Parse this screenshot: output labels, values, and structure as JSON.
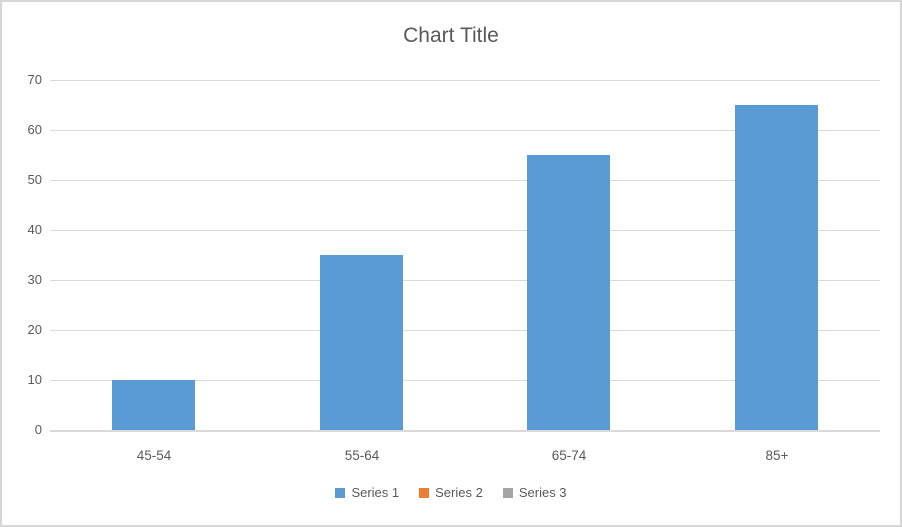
{
  "chart_data": {
    "type": "bar",
    "title": "Chart Title",
    "categories": [
      "45-54",
      "55-64",
      "65-74",
      "85+"
    ],
    "series": [
      {
        "name": "Series 1",
        "color": "#5B9BD5",
        "values": [
          10,
          35,
          55,
          65
        ]
      },
      {
        "name": "Series 2",
        "color": "#ED7D31",
        "values": []
      },
      {
        "name": "Series 3",
        "color": "#A5A5A5",
        "values": []
      }
    ],
    "xlabel": "",
    "ylabel": "",
    "ylim": [
      0,
      70
    ],
    "yticks": [
      0,
      10,
      20,
      30,
      40,
      50,
      60,
      70
    ],
    "grid": true,
    "legend_position": "bottom",
    "colors": {
      "text": "#595959",
      "gridline": "#D9D9D9",
      "frame_border": "#D7D7D7",
      "background": "#FFFFFF"
    }
  }
}
